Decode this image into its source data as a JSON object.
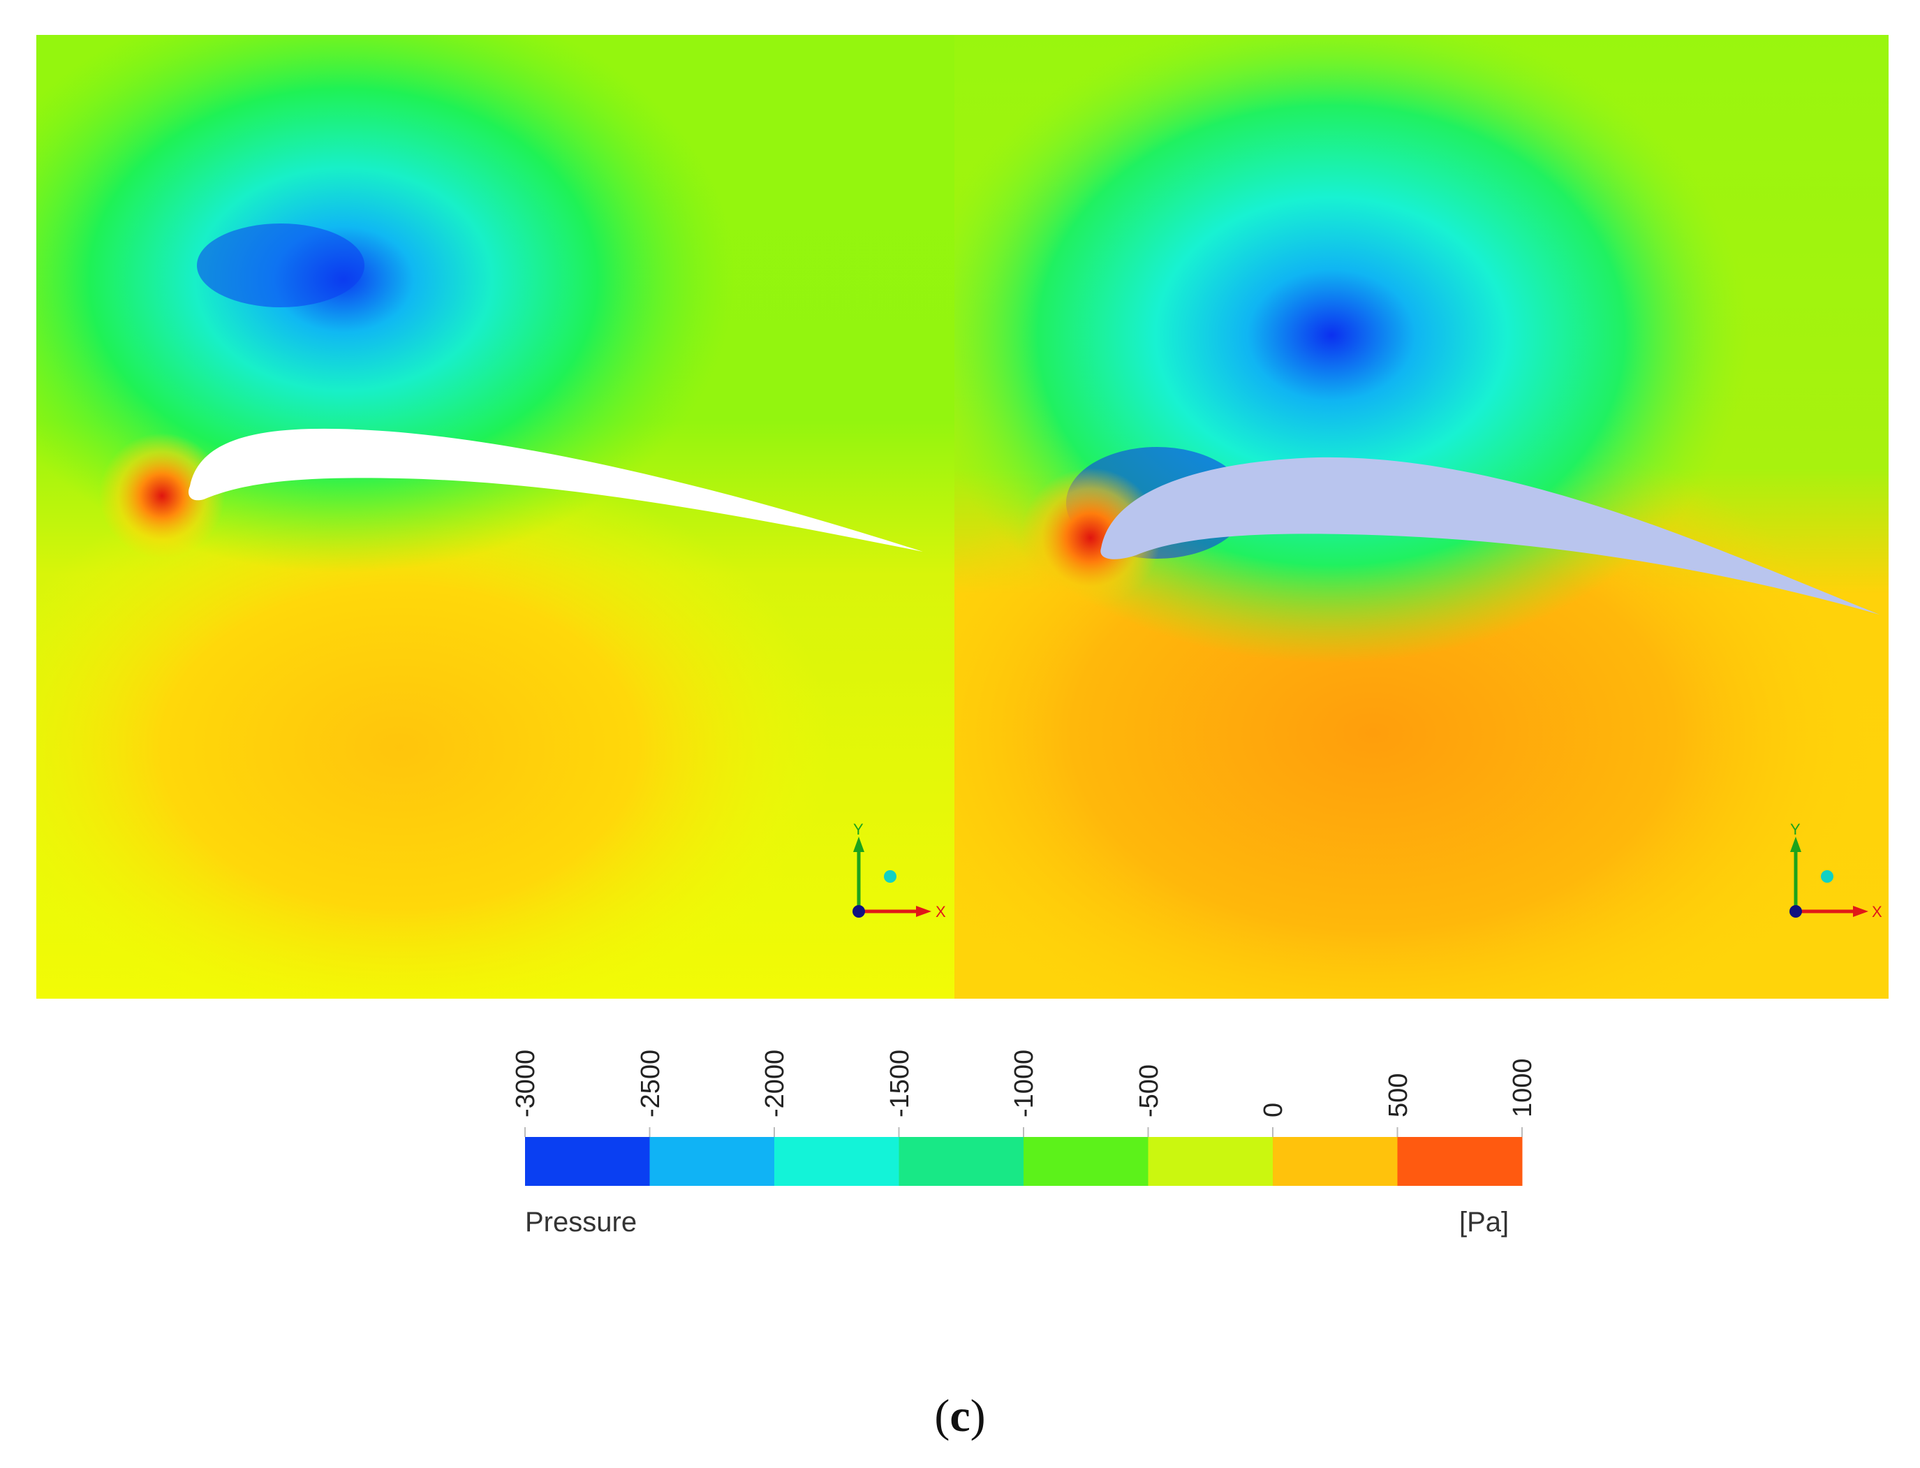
{
  "legend": {
    "title": "Pressure",
    "unit": "[Pa]",
    "tick_labels": [
      "-3000",
      "-2500",
      "-2000",
      "-1500",
      "-1000",
      "-500",
      "0",
      "500",
      "1000"
    ],
    "band_colors": [
      "#0a3ff2",
      "#10b3f5",
      "#13f3d8",
      "#18e886",
      "#5cf21a",
      "#cbf70f",
      "#ffc20c",
      "#ff5a10"
    ]
  },
  "axes": {
    "x_label": "X",
    "y_label": "Y"
  },
  "caption": {
    "open": "(",
    "letter": "c",
    "close": ")"
  },
  "colors": {
    "far_field": "#a9f70f",
    "suction_core": "#0b30f0",
    "stagnation": "#e61a0f",
    "pressure_side": "#ffb30a",
    "airfoil_left": "#ffffff",
    "airfoil_right": "#b9c5ee"
  }
}
